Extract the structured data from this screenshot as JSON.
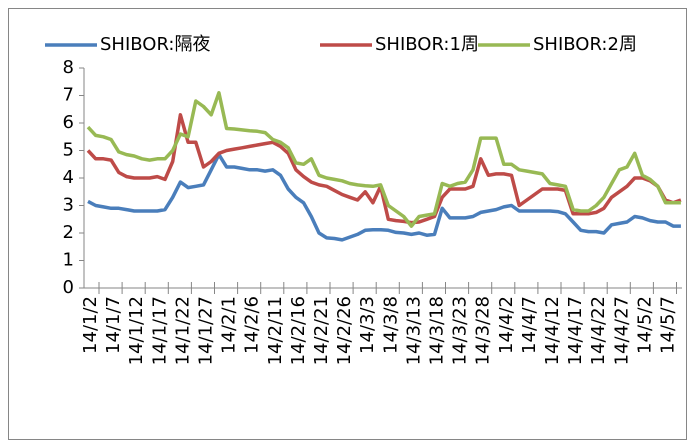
{
  "chart_data": {
    "type": "line",
    "categories": [
      "14/1/2",
      null,
      null,
      "14/1/7",
      null,
      null,
      "14/1/12",
      null,
      null,
      "14/1/17",
      null,
      null,
      "14/1/22",
      null,
      null,
      "14/1/27",
      null,
      null,
      "14/2/1",
      null,
      null,
      "14/2/6",
      null,
      null,
      "14/2/11",
      null,
      null,
      "14/2/16",
      null,
      null,
      "14/2/21",
      null,
      null,
      "14/2/26",
      null,
      null,
      "14/3/3",
      null,
      null,
      "14/3/8",
      null,
      null,
      "14/3/13",
      null,
      null,
      "14/3/18",
      null,
      null,
      "14/3/23",
      null,
      null,
      "14/3/28",
      null,
      null,
      "14/4/2",
      null,
      null,
      "14/4/7",
      null,
      null,
      "14/4/12",
      null,
      null,
      "14/4/17",
      null,
      null,
      "14/4/22",
      null,
      null,
      "14/4/27",
      null,
      null,
      "14/5/2",
      null,
      null,
      "14/5/7",
      null,
      null
    ],
    "series": [
      {
        "name": "SHIBOR:隔夜",
        "color": "#4a7ebb",
        "values": [
          3.15,
          3.0,
          2.95,
          2.9,
          2.9,
          2.85,
          2.8,
          2.8,
          2.8,
          2.8,
          2.85,
          3.3,
          3.85,
          3.65,
          3.7,
          3.75,
          4.3,
          4.85,
          4.4,
          4.4,
          4.35,
          4.3,
          4.3,
          4.25,
          4.3,
          4.1,
          3.6,
          3.3,
          3.1,
          2.6,
          2.0,
          1.82,
          1.8,
          1.75,
          1.85,
          1.95,
          2.1,
          2.12,
          2.12,
          2.1,
          2.02,
          2.0,
          1.95,
          2.0,
          1.92,
          1.95,
          2.9,
          2.55,
          2.55,
          2.55,
          2.6,
          2.75,
          2.8,
          2.85,
          2.95,
          3.0,
          2.8,
          2.8,
          2.8,
          2.8,
          2.8,
          2.78,
          2.7,
          2.4,
          2.1,
          2.05,
          2.05,
          2.0,
          2.3,
          2.35,
          2.4,
          2.6,
          2.55,
          2.45,
          2.4,
          2.4,
          2.25,
          2.25
        ]
      },
      {
        "name": "SHIBOR:1周",
        "color": "#be4b48",
        "values": [
          5.0,
          4.7,
          4.7,
          4.65,
          4.2,
          4.05,
          4.0,
          4.0,
          4.0,
          4.05,
          3.95,
          4.6,
          6.3,
          5.3,
          5.3,
          4.4,
          4.6,
          4.9,
          5.0,
          5.05,
          5.1,
          5.15,
          5.2,
          5.25,
          5.3,
          5.15,
          4.9,
          4.3,
          4.05,
          3.85,
          3.75,
          3.7,
          3.55,
          3.4,
          3.3,
          3.2,
          3.5,
          3.1,
          3.7,
          2.5,
          2.45,
          2.42,
          2.38,
          2.4,
          2.5,
          2.6,
          3.3,
          3.6,
          3.6,
          3.6,
          3.7,
          4.7,
          4.1,
          4.15,
          4.15,
          4.1,
          3.0,
          3.2,
          3.4,
          3.6,
          3.6,
          3.6,
          3.55,
          2.7,
          2.7,
          2.7,
          2.75,
          2.9,
          3.3,
          3.5,
          3.7,
          4.0,
          4.0,
          3.9,
          3.7,
          3.2,
          3.1,
          3.2
        ]
      },
      {
        "name": "SHIBOR:2周",
        "color": "#98b954",
        "values": [
          5.85,
          5.55,
          5.5,
          5.4,
          4.95,
          4.85,
          4.8,
          4.7,
          4.65,
          4.7,
          4.7,
          5.0,
          5.6,
          5.5,
          6.8,
          6.6,
          6.3,
          7.1,
          5.8,
          5.78,
          5.75,
          5.72,
          5.7,
          5.65,
          5.4,
          5.3,
          5.1,
          4.55,
          4.5,
          4.7,
          4.1,
          4.0,
          3.95,
          3.9,
          3.8,
          3.75,
          3.72,
          3.7,
          3.75,
          3.0,
          2.8,
          2.6,
          2.25,
          2.6,
          2.65,
          2.7,
          3.8,
          3.7,
          3.8,
          3.85,
          4.3,
          5.45,
          5.45,
          5.45,
          4.5,
          4.5,
          4.3,
          4.25,
          4.2,
          4.15,
          3.8,
          3.75,
          3.7,
          2.85,
          2.8,
          2.8,
          3.0,
          3.3,
          3.8,
          4.3,
          4.4,
          4.9,
          4.1,
          3.95,
          3.7,
          3.1,
          3.1,
          3.1
        ]
      }
    ],
    "ylim": [
      0,
      8
    ],
    "yticks": [
      0,
      1,
      2,
      3,
      4,
      5,
      6,
      7,
      8
    ],
    "grid": false,
    "legend": "top"
  }
}
